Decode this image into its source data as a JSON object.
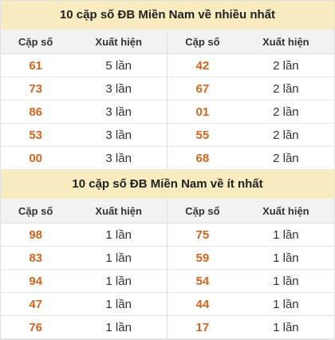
{
  "sections": [
    {
      "title": "10 cặp số ĐB Miền Nam về nhiều nhất",
      "headers": {
        "pair": "Cặp số",
        "count": "Xuất hiện"
      },
      "left": [
        {
          "pair": "61",
          "count": "5 lần"
        },
        {
          "pair": "73",
          "count": "3 lần"
        },
        {
          "pair": "86",
          "count": "3 lần"
        },
        {
          "pair": "53",
          "count": "3 lần"
        },
        {
          "pair": "00",
          "count": "3 lần"
        }
      ],
      "right": [
        {
          "pair": "42",
          "count": "2 lần"
        },
        {
          "pair": "67",
          "count": "2 lần"
        },
        {
          "pair": "01",
          "count": "2 lần"
        },
        {
          "pair": "55",
          "count": "2 lần"
        },
        {
          "pair": "68",
          "count": "2 lần"
        }
      ]
    },
    {
      "title": "10 cặp số ĐB Miền Nam về ít nhất",
      "headers": {
        "pair": "Cặp số",
        "count": "Xuất hiện"
      },
      "left": [
        {
          "pair": "98",
          "count": "1 lần"
        },
        {
          "pair": "83",
          "count": "1 lần"
        },
        {
          "pair": "94",
          "count": "1 lần"
        },
        {
          "pair": "47",
          "count": "1 lần"
        },
        {
          "pair": "76",
          "count": "1 lần"
        }
      ],
      "right": [
        {
          "pair": "75",
          "count": "1 lần"
        },
        {
          "pair": "59",
          "count": "1 lần"
        },
        {
          "pair": "54",
          "count": "1 lần"
        },
        {
          "pair": "44",
          "count": "1 lần"
        },
        {
          "pair": "17",
          "count": "1 lần"
        }
      ]
    }
  ],
  "colors": {
    "title_bg": "#f8ebc0",
    "header_bg": "#f2f2f2",
    "pair_text": "#d4641e",
    "count_text": "#333333"
  }
}
